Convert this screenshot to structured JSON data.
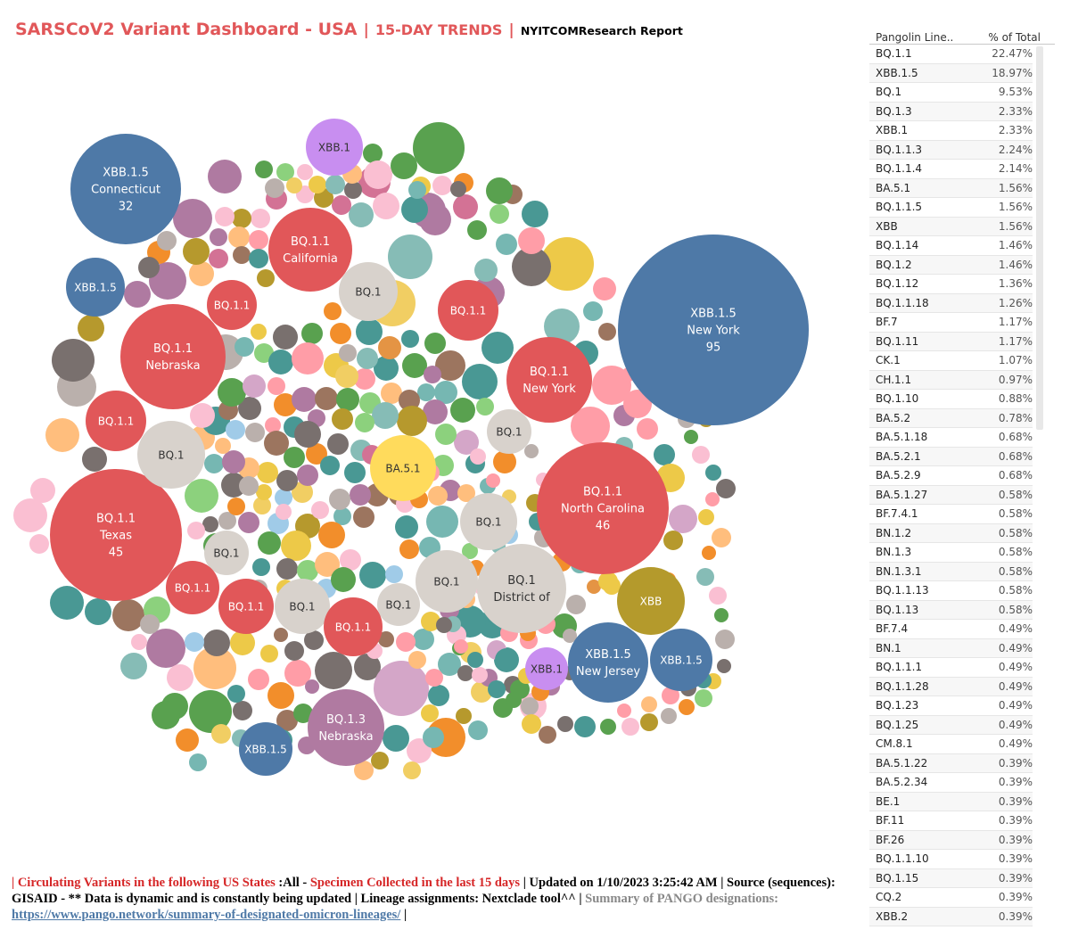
{
  "header": {
    "title": "SARSCoV2 Variant Dashboard - USA",
    "sep1": "|",
    "subtitle": "15-DAY TRENDS",
    "sep2": "|",
    "source": "NYITCOMResearch Report"
  },
  "legend": {
    "col1": "Pangolin Line..",
    "col2": "% of Total",
    "rows": [
      {
        "name": "BQ.1.1",
        "pct": "22.47%"
      },
      {
        "name": "XBB.1.5",
        "pct": "18.97%"
      },
      {
        "name": "BQ.1",
        "pct": "9.53%"
      },
      {
        "name": "BQ.1.3",
        "pct": "2.33%"
      },
      {
        "name": "XBB.1",
        "pct": "2.33%"
      },
      {
        "name": "BQ.1.1.3",
        "pct": "2.24%"
      },
      {
        "name": "BQ.1.1.4",
        "pct": "2.14%"
      },
      {
        "name": "BA.5.1",
        "pct": "1.56%"
      },
      {
        "name": "BQ.1.1.5",
        "pct": "1.56%"
      },
      {
        "name": "XBB",
        "pct": "1.56%"
      },
      {
        "name": "BQ.1.14",
        "pct": "1.46%"
      },
      {
        "name": "BQ.1.2",
        "pct": "1.46%"
      },
      {
        "name": "BQ.1.12",
        "pct": "1.36%"
      },
      {
        "name": "BQ.1.1.18",
        "pct": "1.26%"
      },
      {
        "name": "BF.7",
        "pct": "1.17%"
      },
      {
        "name": "BQ.1.11",
        "pct": "1.17%"
      },
      {
        "name": "CK.1",
        "pct": "1.07%"
      },
      {
        "name": "CH.1.1",
        "pct": "0.97%"
      },
      {
        "name": "BQ.1.10",
        "pct": "0.88%"
      },
      {
        "name": "BA.5.2",
        "pct": "0.78%"
      },
      {
        "name": "BA.5.1.18",
        "pct": "0.68%"
      },
      {
        "name": "BA.5.2.1",
        "pct": "0.68%"
      },
      {
        "name": "BA.5.2.9",
        "pct": "0.68%"
      },
      {
        "name": "BA.5.1.27",
        "pct": "0.58%"
      },
      {
        "name": "BF.7.4.1",
        "pct": "0.58%"
      },
      {
        "name": "BN.1.2",
        "pct": "0.58%"
      },
      {
        "name": "BN.1.3",
        "pct": "0.58%"
      },
      {
        "name": "BN.1.3.1",
        "pct": "0.58%"
      },
      {
        "name": "BQ.1.1.13",
        "pct": "0.58%"
      },
      {
        "name": "BQ.1.13",
        "pct": "0.58%"
      },
      {
        "name": "BF.7.4",
        "pct": "0.49%"
      },
      {
        "name": "BN.1",
        "pct": "0.49%"
      },
      {
        "name": "BQ.1.1.1",
        "pct": "0.49%"
      },
      {
        "name": "BQ.1.1.28",
        "pct": "0.49%"
      },
      {
        "name": "BQ.1.23",
        "pct": "0.49%"
      },
      {
        "name": "BQ.1.25",
        "pct": "0.49%"
      },
      {
        "name": "CM.8.1",
        "pct": "0.49%"
      },
      {
        "name": "BA.5.1.22",
        "pct": "0.39%"
      },
      {
        "name": "BA.5.2.34",
        "pct": "0.39%"
      },
      {
        "name": "BE.1",
        "pct": "0.39%"
      },
      {
        "name": "BF.11",
        "pct": "0.39%"
      },
      {
        "name": "BF.26",
        "pct": "0.39%"
      },
      {
        "name": "BQ.1.1.10",
        "pct": "0.39%"
      },
      {
        "name": "BQ.1.15",
        "pct": "0.39%"
      },
      {
        "name": "CQ.2",
        "pct": "0.39%"
      },
      {
        "name": "XBB.2",
        "pct": "0.39%"
      }
    ]
  },
  "footer": {
    "p1": "| Circulating Variants in the following US States",
    "p2": " :All - ",
    "p3": "Specimen Collected in the last 15 days",
    "p4": " | Updated on 1/10/2023 3:25:42 AM | Source",
    "p5": " (sequences): GISAID - ** Data is dynamic and is constantly being updated | Lineage assignments: Nextclade tool^^ |",
    "p6": " Summary of PANGO designations:",
    "link": "https://www.pango.network/summary-of-designated-omicron-lineages/",
    "p7": " |"
  },
  "chart_data": {
    "type": "packed-bubble",
    "title": "SARSCoV2 Variant Dashboard - USA",
    "size_measure": "sequence count by lineage and state",
    "colors": {
      "XBB.1.5": "#4e79a7",
      "BQ.1.1": "#e15759",
      "BQ.1": "#d8d2cc",
      "XBB.1": "#c88ef0",
      "BA.5.1": "#ffdb5c",
      "XBB": "#b49a2c",
      "BQ.1.3": "#b07aa1",
      "other": "#9c9c9c"
    },
    "labeled_bubbles": [
      {
        "lineage": "XBB.1.5",
        "state": "New York",
        "count": 95
      },
      {
        "lineage": "BQ.1.1",
        "state": "North Carolina",
        "count": 46
      },
      {
        "lineage": "BQ.1.1",
        "state": "Texas",
        "count": 45
      },
      {
        "lineage": "XBB.1.5",
        "state": "Connecticut",
        "count": 32
      },
      {
        "lineage": "BQ.1.1",
        "state": "Nebraska"
      },
      {
        "lineage": "BQ.1.1",
        "state": "California"
      },
      {
        "lineage": "BQ.1.1",
        "state": "New York"
      },
      {
        "lineage": "BQ.1",
        "state": "District of"
      },
      {
        "lineage": "XBB.1.5",
        "state": "New Jersey"
      },
      {
        "lineage": "BQ.1.3",
        "state": "Nebraska"
      },
      {
        "lineage": "BA.5.1"
      },
      {
        "lineage": "XBB"
      },
      {
        "lineage": "XBB.1"
      },
      {
        "lineage": "XBB.1"
      },
      {
        "lineage": "XBB.1.5"
      },
      {
        "lineage": "XBB.1.5"
      },
      {
        "lineage": "XBB.1.5"
      },
      {
        "lineage": "BQ.1"
      },
      {
        "lineage": "BQ.1"
      },
      {
        "lineage": "BQ.1"
      },
      {
        "lineage": "BQ.1"
      },
      {
        "lineage": "BQ.1"
      },
      {
        "lineage": "BQ.1"
      },
      {
        "lineage": "BQ.1"
      },
      {
        "lineage": "BQ.1"
      },
      {
        "lineage": "BQ.1.1"
      },
      {
        "lineage": "BQ.1.1"
      },
      {
        "lineage": "BQ.1.1"
      },
      {
        "lineage": "BQ.1.1"
      },
      {
        "lineage": "BQ.1.1"
      },
      {
        "lineage": "BQ.1.1"
      }
    ]
  }
}
